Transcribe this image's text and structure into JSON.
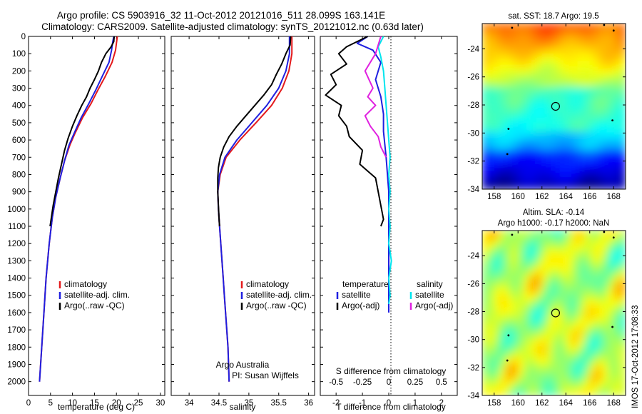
{
  "figure": {
    "title_line1": "Argo profile: CS 5903916_32 11-Oct-2012 20121016_511 28.099S 163.141E",
    "title_line2": "Climatology: CARS2009. Satellite-adjusted climatology: synTS_20121012.nc (0.63d later)",
    "watermark": "IMOS 17-Oct-2012 17:08:33"
  },
  "colors": {
    "climatology": "#e41a1c",
    "satellite": "#1f1fe0",
    "argo": "#000000",
    "salinity_sat": "#00e5ee",
    "salinity_argo": "#e020e0"
  },
  "chart_data": [
    {
      "type": "line",
      "id": "temperature",
      "xlabel": "temperature (deg C)",
      "ylabel": "",
      "xlim": [
        0,
        31
      ],
      "ylim": [
        2080,
        0
      ],
      "xticks": [
        0,
        5,
        10,
        15,
        20,
        25,
        30
      ],
      "yticks": [
        0,
        100,
        200,
        300,
        400,
        500,
        600,
        700,
        800,
        900,
        1000,
        1100,
        1200,
        1300,
        1400,
        1500,
        1600,
        1700,
        1800,
        1900,
        2000
      ],
      "legend": [
        "climatology",
        "satellite-adj. clim.",
        "Argo(..raw -QC)"
      ],
      "series": [
        {
          "name": "climatology",
          "color": "#e41a1c",
          "points": [
            [
              20.2,
              0
            ],
            [
              20.0,
              40
            ],
            [
              19.8,
              80
            ],
            [
              19.0,
              150
            ],
            [
              17.5,
              230
            ],
            [
              15.8,
              310
            ],
            [
              14.2,
              390
            ],
            [
              12.3,
              470
            ],
            [
              10.6,
              560
            ],
            [
              9.4,
              630
            ],
            [
              8.2,
              720
            ],
            [
              7.2,
              820
            ],
            [
              6.2,
              930
            ],
            [
              5.4,
              1050
            ],
            [
              4.7,
              1200
            ],
            [
              4.0,
              1400
            ],
            [
              3.5,
              1600
            ],
            [
              3.0,
              1800
            ],
            [
              2.5,
              2000
            ]
          ]
        },
        {
          "name": "satellite-adj. clim.",
          "color": "#1f1fe0",
          "points": [
            [
              19.4,
              0
            ],
            [
              19.1,
              40
            ],
            [
              18.9,
              80
            ],
            [
              18.3,
              150
            ],
            [
              16.8,
              230
            ],
            [
              15.3,
              310
            ],
            [
              13.7,
              390
            ],
            [
              12.0,
              470
            ],
            [
              10.4,
              560
            ],
            [
              9.2,
              630
            ],
            [
              8.2,
              720
            ],
            [
              7.2,
              820
            ],
            [
              6.2,
              930
            ],
            [
              5.4,
              1050
            ],
            [
              4.7,
              1200
            ],
            [
              4.0,
              1400
            ],
            [
              3.5,
              1600
            ],
            [
              3.0,
              1800
            ],
            [
              2.5,
              2000
            ]
          ]
        },
        {
          "name": "Argo(..raw -QC)",
          "color": "#000000",
          "points": [
            [
              19.5,
              0
            ],
            [
              19.4,
              30
            ],
            [
              18.8,
              60
            ],
            [
              17.6,
              100
            ],
            [
              16.6,
              150
            ],
            [
              15.9,
              200
            ],
            [
              15.0,
              250
            ],
            [
              14.0,
              300
            ],
            [
              13.2,
              350
            ],
            [
              12.1,
              400
            ],
            [
              11.0,
              460
            ],
            [
              10.0,
              520
            ],
            [
              9.0,
              590
            ],
            [
              8.2,
              660
            ],
            [
              7.5,
              740
            ],
            [
              6.8,
              820
            ],
            [
              6.2,
              900
            ],
            [
              5.6,
              980
            ],
            [
              5.2,
              1050
            ],
            [
              4.9,
              1100
            ]
          ]
        }
      ]
    },
    {
      "type": "line",
      "id": "salinity",
      "xlabel": "salinity",
      "ylabel": "",
      "xlim": [
        33.7,
        36.1
      ],
      "ylim": [
        2080,
        0
      ],
      "xticks": [
        34,
        34.5,
        35,
        35.5,
        36
      ],
      "xticklabels": [
        "34",
        "34.5",
        "35",
        "35.5",
        "36"
      ],
      "yticks": [
        0,
        100,
        200,
        300,
        400,
        500,
        600,
        700,
        800,
        900,
        1000,
        1100,
        1200,
        1300,
        1400,
        1500,
        1600,
        1700,
        1800,
        1900,
        2000
      ],
      "legend": [
        "climatology",
        "satellite-adj. clim.",
        "Argo(..raw -QC)"
      ],
      "series": [
        {
          "name": "climatology",
          "color": "#e41a1c",
          "points": [
            [
              35.72,
              0
            ],
            [
              35.72,
              100
            ],
            [
              35.67,
              200
            ],
            [
              35.56,
              300
            ],
            [
              35.38,
              400
            ],
            [
              35.12,
              500
            ],
            [
              34.85,
              600
            ],
            [
              34.62,
              700
            ],
            [
              34.52,
              800
            ],
            [
              34.48,
              900
            ],
            [
              34.49,
              1000
            ],
            [
              34.51,
              1100
            ],
            [
              34.53,
              1200
            ],
            [
              34.55,
              1300
            ],
            [
              34.57,
              1400
            ],
            [
              34.59,
              1500
            ],
            [
              34.61,
              1600
            ],
            [
              34.63,
              1700
            ],
            [
              34.65,
              1800
            ],
            [
              34.66,
              1900
            ],
            [
              34.67,
              2000
            ]
          ]
        },
        {
          "name": "satellite-adj. clim.",
          "color": "#1f1fe0",
          "points": [
            [
              35.68,
              0
            ],
            [
              35.68,
              100
            ],
            [
              35.62,
              200
            ],
            [
              35.5,
              300
            ],
            [
              35.3,
              400
            ],
            [
              35.05,
              500
            ],
            [
              34.8,
              600
            ],
            [
              34.6,
              700
            ],
            [
              34.51,
              800
            ],
            [
              34.48,
              900
            ],
            [
              34.49,
              1000
            ],
            [
              34.51,
              1100
            ],
            [
              34.53,
              1200
            ],
            [
              34.55,
              1300
            ],
            [
              34.57,
              1400
            ],
            [
              34.59,
              1500
            ],
            [
              34.61,
              1600
            ],
            [
              34.63,
              1700
            ],
            [
              34.65,
              1800
            ],
            [
              34.66,
              1900
            ],
            [
              34.67,
              2000
            ]
          ]
        },
        {
          "name": "Argo(..raw -QC)",
          "color": "#000000",
          "points": [
            [
              35.7,
              0
            ],
            [
              35.69,
              50
            ],
            [
              35.62,
              100
            ],
            [
              35.55,
              160
            ],
            [
              35.46,
              220
            ],
            [
              35.38,
              280
            ],
            [
              35.25,
              340
            ],
            [
              35.1,
              400
            ],
            [
              34.95,
              460
            ],
            [
              34.8,
              520
            ],
            [
              34.67,
              580
            ],
            [
              34.58,
              640
            ],
            [
              34.52,
              700
            ],
            [
              34.49,
              760
            ],
            [
              34.48,
              820
            ],
            [
              34.48,
              900
            ],
            [
              34.49,
              980
            ],
            [
              34.5,
              1050
            ],
            [
              34.51,
              1100
            ]
          ]
        }
      ]
    },
    {
      "type": "line",
      "id": "difference",
      "xlabel": "T difference from climatology",
      "xlabel_top": "S difference from climatology",
      "ylabel": "",
      "xlim": [
        -2.6,
        2.6
      ],
      "ylim": [
        2080,
        0
      ],
      "xticks": [
        -2,
        -1,
        0,
        1,
        2
      ],
      "xticklabels": [
        "-2",
        "-1",
        "0",
        "1",
        "2"
      ],
      "xticks_s": [
        -2.0,
        -1.0,
        0,
        1.0,
        2.0
      ],
      "xticklabels_s": [
        "-0.5",
        "-0.25",
        "0",
        "0.25",
        "0.5"
      ],
      "yticks": [
        0,
        100,
        200,
        300,
        400,
        500,
        600,
        700,
        800,
        900,
        1000,
        1100,
        1200,
        1300,
        1400,
        1500,
        1600,
        1700,
        1800,
        1900,
        2000
      ],
      "legend_temperature_header": "temperature",
      "legend_salinity_header": "salinity",
      "legend": [
        "satellite",
        "Argo(-adj)",
        "satellite",
        "Argo(-adj)"
      ],
      "series": [
        {
          "name": "satellite",
          "group": "temperature",
          "color": "#1f1fe0",
          "points": [
            [
              -0.8,
              0
            ],
            [
              -1.2,
              40
            ],
            [
              -0.6,
              80
            ],
            [
              -0.3,
              150
            ],
            [
              -0.5,
              250
            ],
            [
              -0.3,
              350
            ],
            [
              -0.2,
              450
            ],
            [
              -0.2,
              550
            ],
            [
              -0.1,
              700
            ],
            [
              0.0,
              900
            ],
            [
              0.0,
              1100
            ],
            [
              0.0,
              1400
            ],
            [
              0.0,
              1600
            ]
          ]
        },
        {
          "name": "Argo(-adj)",
          "group": "temperature",
          "color": "#000000",
          "points": [
            [
              -0.8,
              0
            ],
            [
              -1.6,
              60
            ],
            [
              -1.9,
              100
            ],
            [
              -1.6,
              160
            ],
            [
              -2.2,
              220
            ],
            [
              -2.0,
              280
            ],
            [
              -2.4,
              340
            ],
            [
              -1.8,
              400
            ],
            [
              -1.9,
              460
            ],
            [
              -1.6,
              520
            ],
            [
              -1.5,
              580
            ],
            [
              -1.0,
              660
            ],
            [
              -1.1,
              740
            ],
            [
              -0.5,
              820
            ],
            [
              -0.4,
              900
            ],
            [
              -0.3,
              980
            ],
            [
              -0.2,
              1060
            ],
            [
              -0.3,
              1100
            ]
          ]
        },
        {
          "name": "satellite",
          "group": "salinity",
          "color": "#00e5ee",
          "points": [
            [
              -0.2,
              0
            ],
            [
              -0.4,
              60
            ],
            [
              -0.3,
              120
            ],
            [
              -0.2,
              200
            ],
            [
              -0.15,
              300
            ],
            [
              -0.1,
              400
            ],
            [
              -0.05,
              500
            ],
            [
              0.0,
              600
            ],
            [
              0.05,
              700
            ],
            [
              0.0,
              800
            ],
            [
              0.05,
              900
            ],
            [
              0.0,
              1000
            ],
            [
              0.05,
              1100
            ],
            [
              0.0,
              1200
            ],
            [
              0.1,
              1300
            ],
            [
              0.0,
              1400
            ],
            [
              0.05,
              1500
            ],
            [
              0.0,
              1550
            ]
          ]
        },
        {
          "name": "Argo(-adj)",
          "group": "salinity",
          "color": "#e020e0",
          "points": [
            [
              -0.3,
              0
            ],
            [
              -0.5,
              100
            ],
            [
              -0.9,
              200
            ],
            [
              -0.6,
              300
            ],
            [
              -0.8,
              350
            ],
            [
              -0.5,
              400
            ],
            [
              -0.9,
              460
            ],
            [
              -0.7,
              520
            ],
            [
              -0.4,
              580
            ],
            [
              -0.3,
              640
            ],
            [
              -0.1,
              700
            ]
          ]
        }
      ]
    },
    {
      "type": "heatmap",
      "id": "sst_map",
      "title": "sat. SST: 18.7 Argo: 19.5",
      "xlim": [
        157,
        169
      ],
      "ylim": [
        -34,
        -22.2
      ],
      "xticks": [
        158,
        160,
        162,
        164,
        166,
        168
      ],
      "yticks": [
        -24,
        -26,
        -28,
        -30,
        -32,
        -34
      ],
      "float_position": [
        163.141,
        -28.099
      ]
    },
    {
      "type": "heatmap",
      "id": "sla_map",
      "title": "Altim. SLA: -0.14",
      "subtitle": "Argo h1000: -0.17 h2000: NaN",
      "xlim": [
        157,
        169
      ],
      "ylim": [
        -34,
        -22.2
      ],
      "xticks": [
        158,
        160,
        162,
        164,
        166,
        168
      ],
      "yticks": [
        -24,
        -26,
        -28,
        -30,
        -32,
        -34
      ],
      "float_position": [
        163.141,
        -28.099
      ]
    }
  ],
  "annotations": {
    "organisation": "Argo Australia",
    "pi": "PI: Susan Wijffels"
  }
}
